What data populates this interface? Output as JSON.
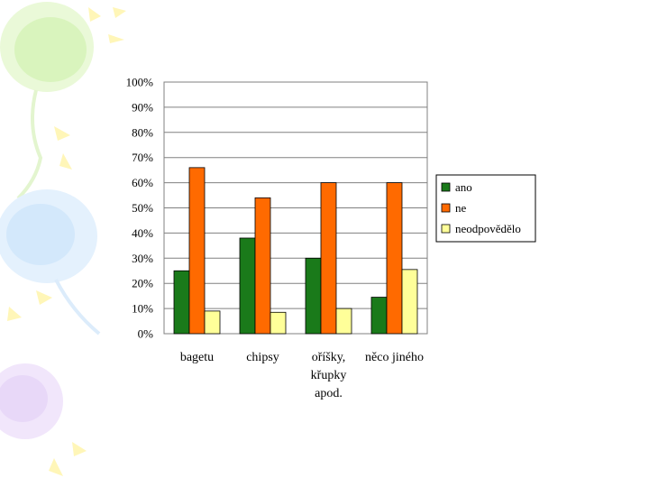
{
  "slide": {
    "decoration": "balloons"
  },
  "chart_data": {
    "type": "bar",
    "categories": [
      "bagetu",
      "chipsy",
      "oříšky, křupky apod.",
      "něco jiného"
    ],
    "category_lines": [
      [
        "bagetu"
      ],
      [
        "chipsy"
      ],
      [
        "oříšky,",
        "křupky",
        "apod."
      ],
      [
        "něco jiného"
      ]
    ],
    "series": [
      {
        "name": "ano",
        "values": [
          25,
          38,
          30,
          14.5
        ],
        "color": "#1a7a1a"
      },
      {
        "name": "ne",
        "values": [
          66,
          54,
          60,
          60
        ],
        "color": "#ff6a00"
      },
      {
        "name": "neodpovědělo",
        "values": [
          9,
          8.5,
          10,
          25.5
        ],
        "color": "#ffff99"
      }
    ],
    "ylim": [
      0,
      100
    ],
    "yticks": [
      "0%",
      "10%",
      "20%",
      "30%",
      "40%",
      "50%",
      "60%",
      "70%",
      "80%",
      "90%",
      "100%"
    ],
    "grid": true,
    "legend_position": "right",
    "title": "",
    "xlabel": "",
    "ylabel": ""
  }
}
